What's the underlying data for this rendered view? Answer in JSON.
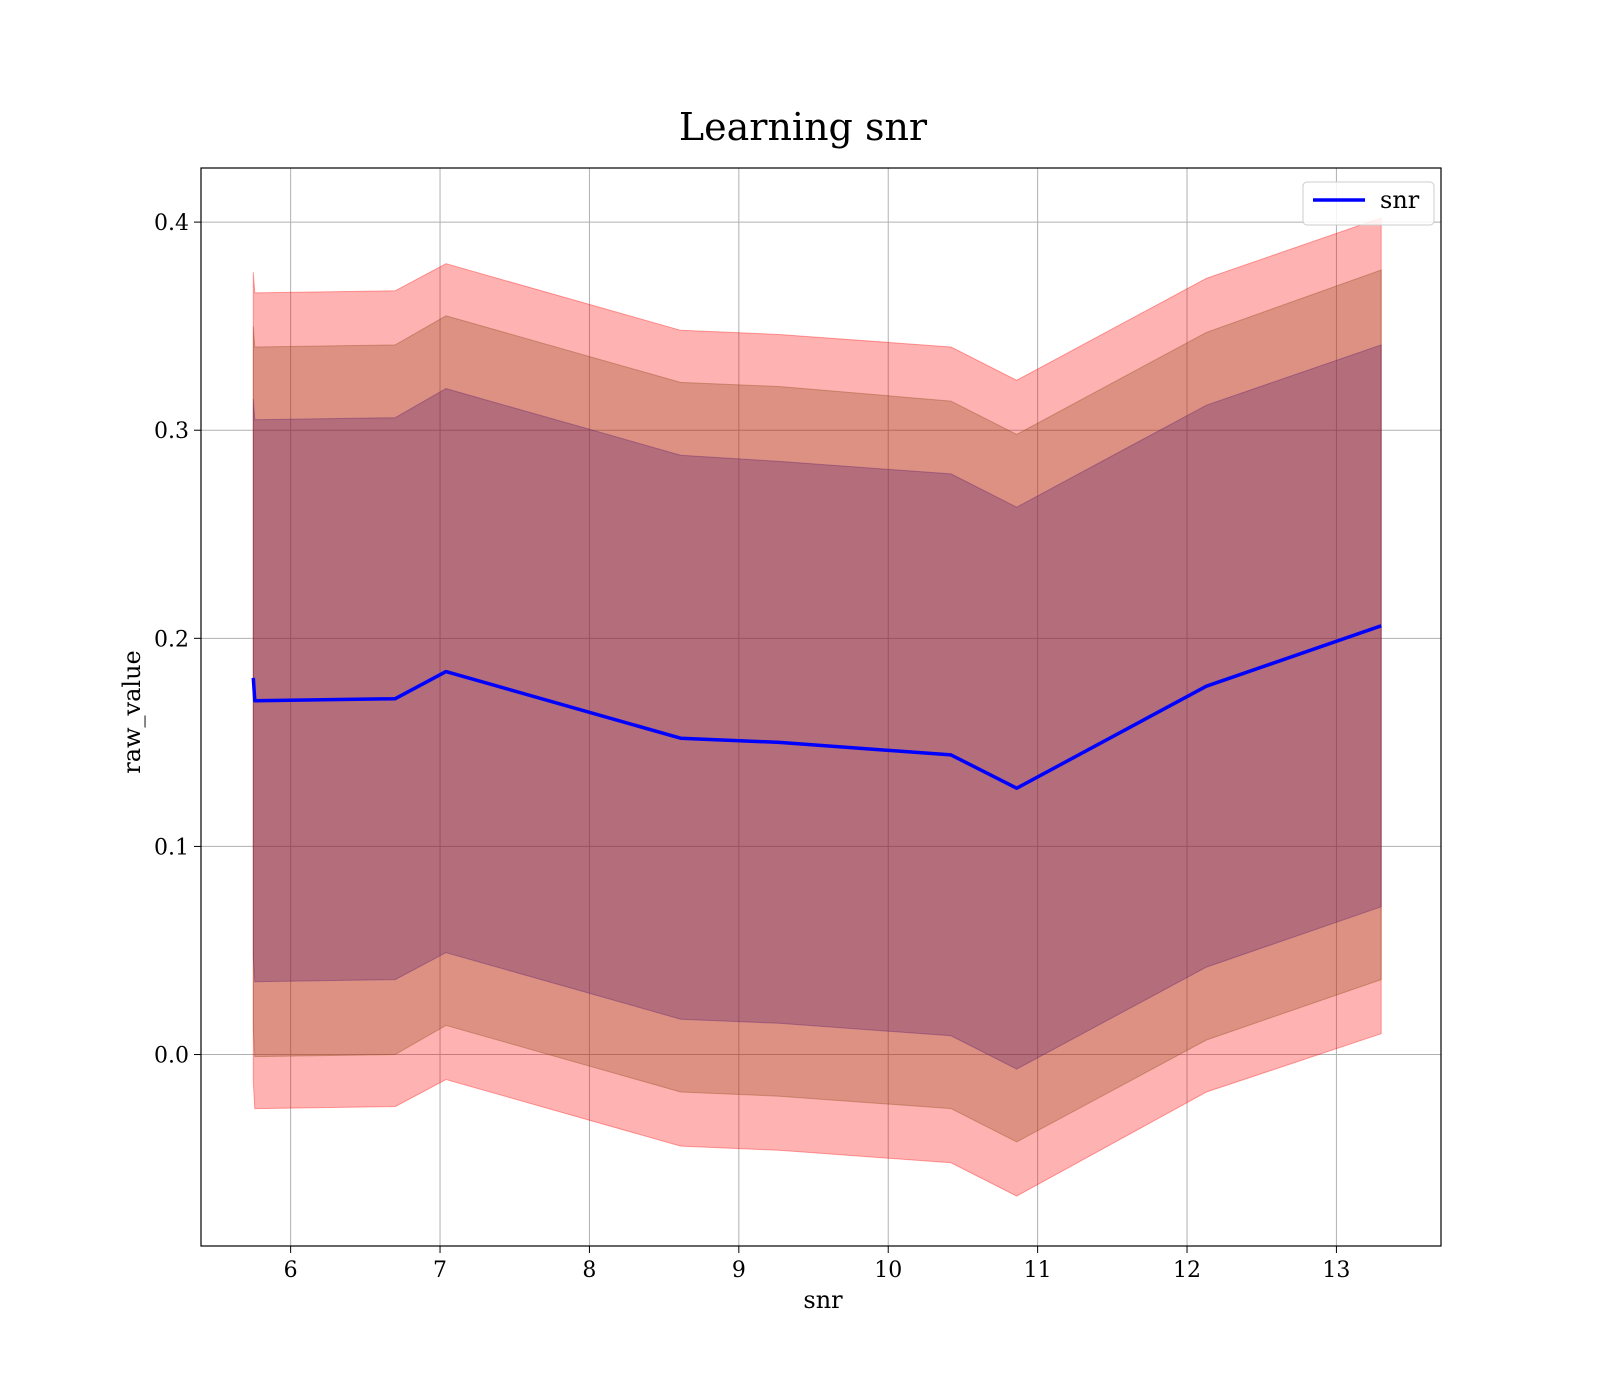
{
  "chart_data": {
    "type": "line",
    "title": "Learning snr",
    "xlabel": "snr",
    "ylabel": "raw_value",
    "xlim": [
      5.4,
      13.7
    ],
    "ylim": [
      -0.092,
      0.426
    ],
    "xticks": [
      6,
      7,
      8,
      9,
      10,
      11,
      12,
      13
    ],
    "yticks": [
      0.0,
      0.1,
      0.2,
      0.3,
      0.4
    ],
    "ytick_labels": [
      "0.0",
      "0.1",
      "0.2",
      "0.3",
      "0.4"
    ],
    "grid": true,
    "legend": {
      "position": "top-right",
      "entries": [
        "snr"
      ]
    },
    "x": [
      5.75,
      5.76,
      6.7,
      7.04,
      8.61,
      9.27,
      10.42,
      10.86,
      12.13,
      13.3
    ],
    "series": [
      {
        "name": "snr",
        "color": "#0000ff",
        "values": [
          0.181,
          0.17,
          0.171,
          0.184,
          0.152,
          0.15,
          0.144,
          0.128,
          0.177,
          0.206
        ]
      }
    ],
    "bands": [
      {
        "color": "#ff0000",
        "opacity": 0.3,
        "lower": [
          -0.013,
          -0.026,
          -0.025,
          -0.012,
          -0.044,
          -0.046,
          -0.052,
          -0.068,
          -0.018,
          0.01
        ],
        "upper": [
          0.376,
          0.366,
          0.367,
          0.38,
          0.348,
          0.346,
          0.34,
          0.324,
          0.373,
          0.402
        ]
      },
      {
        "color": "#8b4513",
        "opacity": 0.3,
        "lower": [
          0.012,
          -0.001,
          0.0,
          0.014,
          -0.018,
          -0.02,
          -0.026,
          -0.042,
          0.007,
          0.036
        ],
        "upper": [
          0.35,
          0.34,
          0.341,
          0.355,
          0.323,
          0.321,
          0.314,
          0.298,
          0.347,
          0.377
        ]
      },
      {
        "color": "#5a1a6e",
        "opacity": 0.3,
        "lower": [
          0.047,
          0.035,
          0.036,
          0.049,
          0.017,
          0.015,
          0.009,
          -0.007,
          0.042,
          0.071
        ],
        "upper": [
          0.315,
          0.305,
          0.306,
          0.32,
          0.288,
          0.285,
          0.279,
          0.263,
          0.312,
          0.341
        ]
      }
    ]
  }
}
